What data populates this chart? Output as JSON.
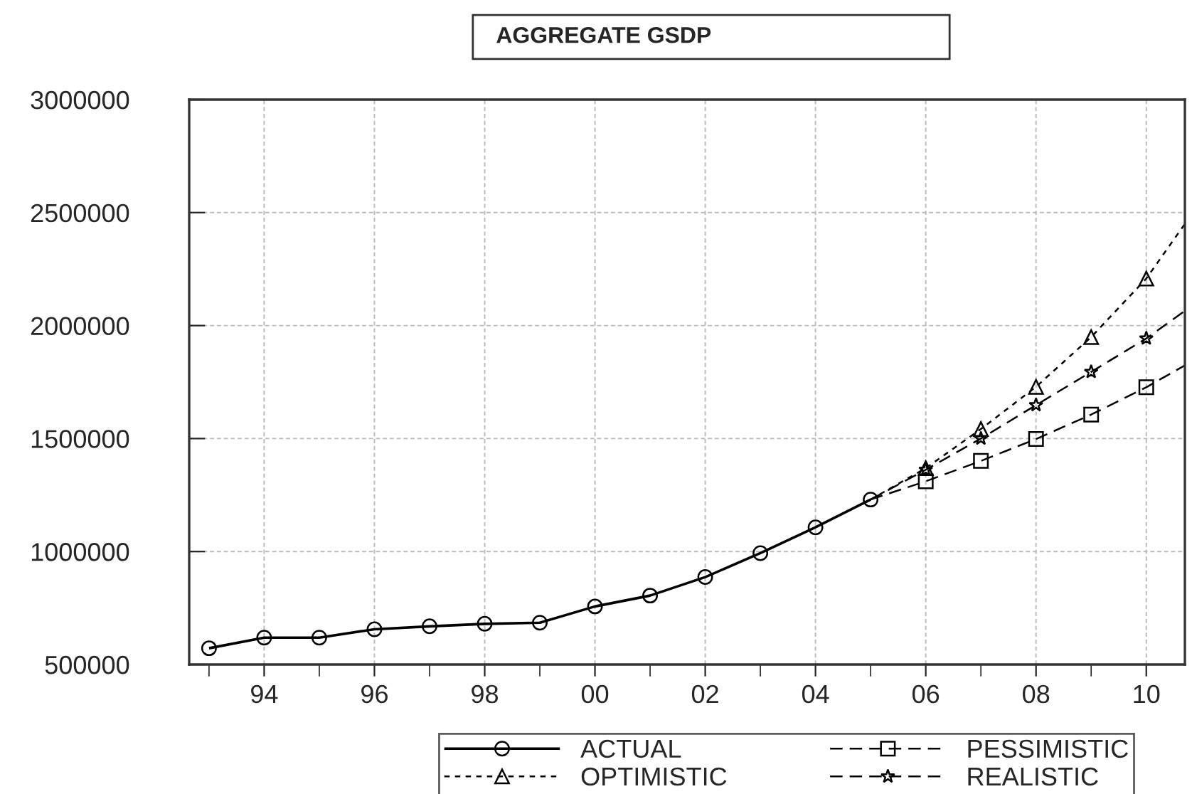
{
  "chart_data": {
    "type": "line",
    "title": "AGGREGATE GSDP",
    "series": [
      {
        "name": "ACTUAL",
        "color": "#000000",
        "marker": "circle",
        "line_style": "solid",
        "x": [
          1993,
          1994,
          1995,
          1996,
          1997,
          1998,
          1999,
          2000,
          2001,
          2002,
          2003,
          2004,
          2005
        ],
        "values": [
          572000,
          619000,
          619000,
          656000,
          669000,
          680000,
          685000,
          757000,
          805000,
          887000,
          993000,
          1107000,
          1230000
        ]
      },
      {
        "name": "OPTIMISTIC",
        "color": "#000000",
        "marker": "triangle",
        "line_style": "dotted",
        "x": [
          2005,
          2006,
          2007,
          2008,
          2009,
          2010,
          2010.7
        ],
        "values": [
          1230000,
          1369000,
          1542000,
          1729000,
          1949000,
          2208000,
          2450000
        ]
      },
      {
        "name": "PESSIMISTIC",
        "color": "#000000",
        "marker": "square",
        "line_style": "dashed",
        "x": [
          2005,
          2006,
          2007,
          2008,
          2009,
          2010,
          2010.7
        ],
        "values": [
          1230000,
          1311000,
          1401000,
          1498000,
          1606000,
          1727000,
          1824000
        ]
      },
      {
        "name": "REALISTIC",
        "color": "#000000",
        "marker": "star",
        "line_style": "dashed",
        "x": [
          2005,
          2006,
          2007,
          2008,
          2009,
          2010,
          2010.7
        ],
        "values": [
          1230000,
          1362000,
          1500000,
          1648000,
          1795000,
          1943000,
          2065000
        ]
      }
    ],
    "xlim": [
      1992.64,
      2010.7
    ],
    "xticks": [
      {
        "value": 1993,
        "label": null
      },
      {
        "value": 1994,
        "label": "94"
      },
      {
        "value": 1995,
        "label": null
      },
      {
        "value": 1996,
        "label": "96"
      },
      {
        "value": 1997,
        "label": null
      },
      {
        "value": 1998,
        "label": "98"
      },
      {
        "value": 1999,
        "label": null
      },
      {
        "value": 2000,
        "label": "00"
      },
      {
        "value": 2001,
        "label": null
      },
      {
        "value": 2002,
        "label": "02"
      },
      {
        "value": 2003,
        "label": null
      },
      {
        "value": 2004,
        "label": "04"
      },
      {
        "value": 2005,
        "label": null
      },
      {
        "value": 2006,
        "label": "06"
      },
      {
        "value": 2007,
        "label": null
      },
      {
        "value": 2008,
        "label": "08"
      },
      {
        "value": 2009,
        "label": null
      },
      {
        "value": 2010,
        "label": "10"
      }
    ],
    "ylim": [
      500000,
      3000000
    ],
    "yticks": [
      500000,
      1000000,
      1500000,
      2000000,
      2500000,
      3000000
    ],
    "grid": true,
    "legend": "bottom"
  }
}
